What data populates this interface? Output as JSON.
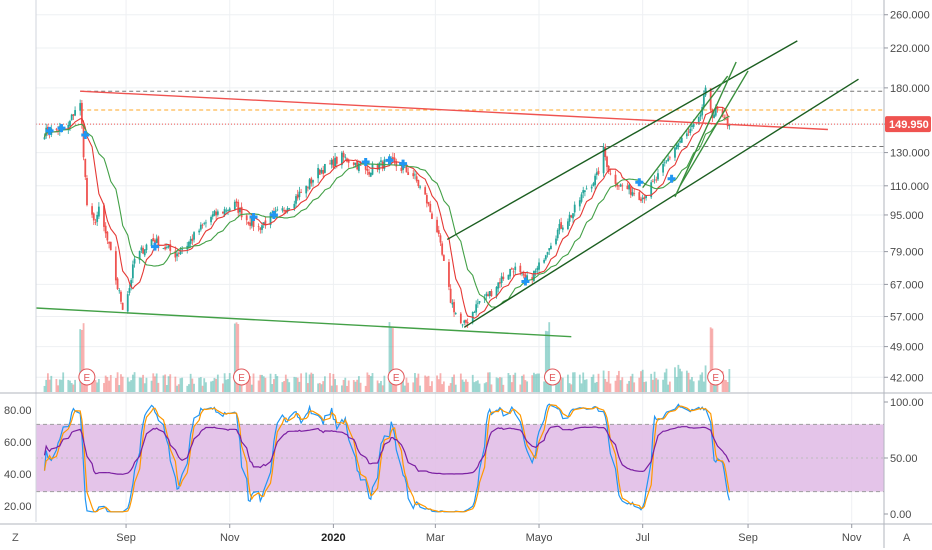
{
  "chart_data": {
    "type": "candlestick",
    "price_axis": {
      "labels": [
        "260.000",
        "220.000",
        "180.000",
        "150.000",
        "130.000",
        "110.000",
        "95.000",
        "79.000",
        "67.000",
        "57.000",
        "49.000",
        "42.000"
      ],
      "values": [
        260,
        220,
        180,
        150,
        130,
        110,
        95,
        79,
        67,
        57,
        49,
        42
      ],
      "scale": "log",
      "range": [
        39,
        280
      ]
    },
    "current_price": {
      "label": "149.950",
      "value": 149.95,
      "color": "#ef5350"
    },
    "time_axis": {
      "labels": [
        "Sep",
        "Nov",
        "2020",
        "Mar",
        "Mayo",
        "Jul",
        "Sep",
        "Nov"
      ],
      "bold": [
        false,
        false,
        true,
        false,
        false,
        false,
        false,
        false
      ],
      "dates": [
        "2019-09-01",
        "2019-11-01",
        "2020-01-01",
        "2020-03-01",
        "2020-05-01",
        "2020-07-01",
        "2020-09-01",
        "2020-11-01"
      ],
      "range": [
        "2019-07-10",
        "2020-11-20"
      ]
    },
    "series_points": [
      [
        "2019-07-15",
        144
      ],
      [
        "2019-07-22",
        146
      ],
      [
        "2019-07-29",
        148
      ],
      [
        "2019-08-02",
        162
      ],
      [
        "2019-08-05",
        165
      ],
      [
        "2019-08-06",
        148
      ],
      [
        "2019-08-09",
        100
      ],
      [
        "2019-08-13",
        91
      ],
      [
        "2019-08-16",
        97
      ],
      [
        "2019-08-20",
        86
      ],
      [
        "2019-08-23",
        78
      ],
      [
        "2019-08-27",
        66
      ],
      [
        "2019-08-30",
        60
      ],
      [
        "2019-09-03",
        66
      ],
      [
        "2019-09-06",
        76
      ],
      [
        "2019-09-11",
        80
      ],
      [
        "2019-09-16",
        84
      ],
      [
        "2019-09-23",
        81
      ],
      [
        "2019-09-30",
        78
      ],
      [
        "2019-10-07",
        82
      ],
      [
        "2019-10-14",
        88
      ],
      [
        "2019-10-21",
        94
      ],
      [
        "2019-10-28",
        97
      ],
      [
        "2019-11-04",
        100
      ],
      [
        "2019-11-11",
        93
      ],
      [
        "2019-11-18",
        89
      ],
      [
        "2019-11-25",
        94
      ],
      [
        "2019-12-02",
        97
      ],
      [
        "2019-12-09",
        103
      ],
      [
        "2019-12-16",
        109
      ],
      [
        "2019-12-23",
        118
      ],
      [
        "2019-12-30",
        122
      ],
      [
        "2020-01-06",
        127
      ],
      [
        "2020-01-13",
        124
      ],
      [
        "2020-01-20",
        118
      ],
      [
        "2020-01-27",
        122
      ],
      [
        "2020-02-03",
        124
      ],
      [
        "2020-02-10",
        120
      ],
      [
        "2020-02-17",
        116
      ],
      [
        "2020-02-24",
        104
      ],
      [
        "2020-03-02",
        88
      ],
      [
        "2020-03-06",
        74
      ],
      [
        "2020-03-10",
        62
      ],
      [
        "2020-03-13",
        58
      ],
      [
        "2020-03-17",
        54
      ],
      [
        "2020-03-20",
        56
      ],
      [
        "2020-03-26",
        61
      ],
      [
        "2020-04-02",
        64
      ],
      [
        "2020-04-09",
        69
      ],
      [
        "2020-04-16",
        73
      ],
      [
        "2020-04-23",
        68
      ],
      [
        "2020-04-30",
        72
      ],
      [
        "2020-05-07",
        82
      ],
      [
        "2020-05-14",
        90
      ],
      [
        "2020-05-21",
        96
      ],
      [
        "2020-05-28",
        108
      ],
      [
        "2020-06-04",
        115
      ],
      [
        "2020-06-08",
        131
      ],
      [
        "2020-06-12",
        116
      ],
      [
        "2020-06-18",
        110
      ],
      [
        "2020-06-25",
        107
      ],
      [
        "2020-07-01",
        104
      ],
      [
        "2020-07-08",
        112
      ],
      [
        "2020-07-13",
        120
      ],
      [
        "2020-07-20",
        134
      ],
      [
        "2020-07-27",
        142
      ],
      [
        "2020-08-03",
        152
      ],
      [
        "2020-08-07",
        176
      ],
      [
        "2020-08-11",
        158
      ],
      [
        "2020-08-14",
        160
      ],
      [
        "2020-08-18",
        152
      ],
      [
        "2020-08-21",
        149.95
      ]
    ],
    "moving_averages": [
      {
        "color": "#e53935",
        "period": 9
      },
      {
        "color": "#43a047",
        "period": 20
      }
    ],
    "colors": {
      "up": "#26a69a",
      "down": "#ef5350"
    },
    "cross_markers": [
      [
        "2019-07-18",
        145
      ],
      [
        "2019-07-25",
        147
      ],
      [
        "2019-08-08",
        142
      ],
      [
        "2019-09-18",
        81
      ],
      [
        "2019-11-15",
        94
      ],
      [
        "2019-11-27",
        95
      ],
      [
        "2020-01-20",
        124
      ],
      [
        "2020-02-03",
        125
      ],
      [
        "2020-02-11",
        123
      ],
      [
        "2020-04-23",
        68
      ],
      [
        "2020-06-29",
        112
      ],
      [
        "2020-07-18",
        114
      ]
    ],
    "trend_lines": [
      {
        "color": "#ef5350",
        "from": [
          "2019-08-05",
          177
        ],
        "to": [
          "2020-10-18",
          146
        ]
      },
      {
        "color": "#43a047",
        "from": [
          "2019-07-10",
          59.5
        ],
        "to": [
          "2020-05-20",
          51.5
        ]
      },
      {
        "color": "#1b5e20",
        "from": [
          "2020-03-08",
          84
        ],
        "to": [
          "2020-09-30",
          228
        ]
      },
      {
        "color": "#1b5e20",
        "from": [
          "2020-03-18",
          54
        ],
        "to": [
          "2020-11-05",
          188
        ]
      },
      {
        "color": "#388e3c",
        "from": [
          "2020-07-20",
          104
        ],
        "to": [
          "2020-08-25",
          205
        ]
      },
      {
        "color": "#388e3c",
        "from": [
          "2020-07-23",
          110
        ],
        "to": [
          "2020-09-01",
          196
        ]
      },
      {
        "color": "#388e3c",
        "from": [
          "2020-07-01",
          109
        ],
        "to": [
          "2020-08-20",
          191
        ]
      }
    ],
    "horizontal_levels": [
      {
        "value": 177,
        "color": "#757575",
        "style": "dashed",
        "from": "2019-08-05"
      },
      {
        "value": 161,
        "color": "#ffa726",
        "style": "dashed",
        "from": "2019-08-05"
      },
      {
        "value": 149.95,
        "color": "#ef5350",
        "style": "dotted",
        "from": "2019-07-10"
      },
      {
        "value": 134,
        "color": "#757575",
        "style": "dashed",
        "from": "2020-01-01"
      }
    ],
    "volume": {
      "earnings_dates": [
        "2019-08-06",
        "2019-11-05",
        "2020-02-04",
        "2020-05-06",
        "2020-08-10"
      ],
      "earnings_label": "E"
    },
    "stochastic_rsi": {
      "left_axis": {
        "labels": [
          "80.00",
          "60.00",
          "40.00",
          "20.00"
        ],
        "values": [
          80,
          60,
          40,
          20
        ]
      },
      "right_axis": {
        "labels": [
          "100.00",
          "50.00",
          "0.00"
        ],
        "values": [
          100,
          50,
          0
        ]
      },
      "band": [
        80,
        20
      ],
      "band_color": "#e1bee7",
      "line_colors": [
        "#2196f3",
        "#ff9800",
        "#7b1fa2"
      ]
    },
    "corner_labels": {
      "left": "Z",
      "right": "A"
    }
  }
}
